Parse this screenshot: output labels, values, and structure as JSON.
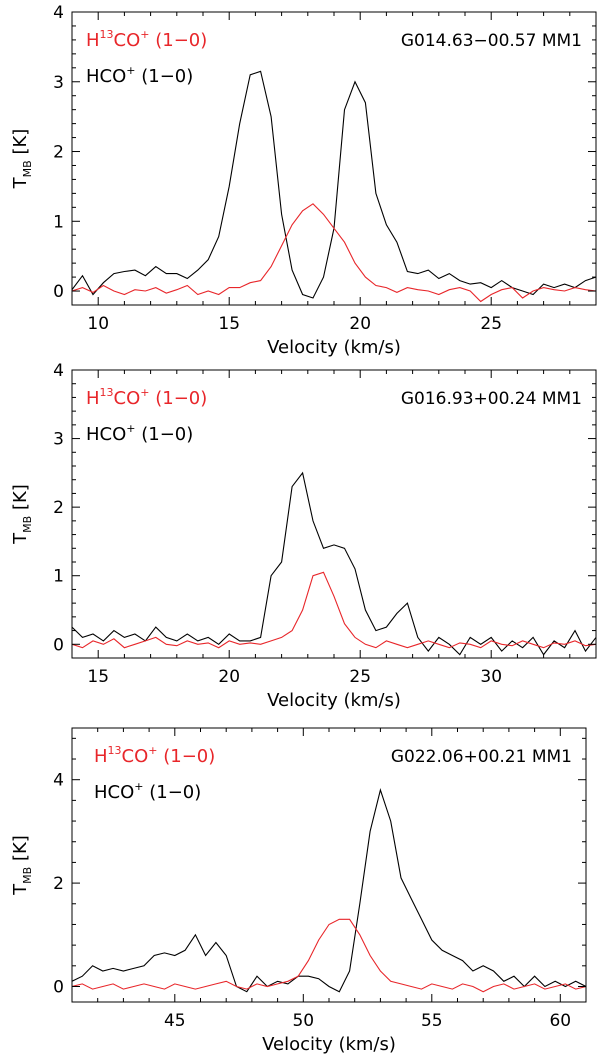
{
  "colors": {
    "hco": "#000000",
    "h13co": "#e8262a"
  },
  "chart_data": [
    {
      "type": "line",
      "source": "G014.63−00.57 MM1",
      "xlabel": "Velocity (km/s)",
      "ylabel_main": "T",
      "ylabel_sub": "MB",
      "ylabel_unit": "[K]",
      "xlim": [
        9,
        29
      ],
      "ylim": [
        -0.2,
        4
      ],
      "xticks": [
        10,
        15,
        20,
        25
      ],
      "yticks": [
        0,
        1,
        2,
        3,
        4
      ],
      "legend": [
        {
          "prefix": "H",
          "sup1": "13",
          "mid": "CO",
          "sup2": "+",
          "suffix": " (1−0)",
          "color": "#e8262a"
        },
        {
          "prefix": "",
          "sup1": "",
          "mid": "HCO",
          "sup2": "+",
          "suffix": " (1−0)",
          "color": "#000000"
        }
      ],
      "series": [
        {
          "name": "HCO+ (1-0)",
          "color": "#000000",
          "x": [
            9.0,
            9.4,
            9.8,
            10.2,
            10.6,
            11.0,
            11.4,
            11.8,
            12.2,
            12.6,
            13.0,
            13.4,
            13.8,
            14.2,
            14.6,
            15.0,
            15.4,
            15.8,
            16.2,
            16.6,
            17.0,
            17.4,
            17.8,
            18.2,
            18.6,
            19.0,
            19.4,
            19.8,
            20.2,
            20.6,
            21.0,
            21.4,
            21.8,
            22.2,
            22.6,
            23.0,
            23.4,
            23.8,
            24.2,
            24.6,
            25.0,
            25.4,
            25.8,
            26.2,
            26.6,
            27.0,
            27.4,
            27.8,
            28.2,
            28.6,
            29.0
          ],
          "y": [
            0.02,
            0.22,
            -0.05,
            0.12,
            0.25,
            0.28,
            0.3,
            0.22,
            0.35,
            0.25,
            0.25,
            0.18,
            0.3,
            0.45,
            0.78,
            1.5,
            2.4,
            3.1,
            3.15,
            2.5,
            1.1,
            0.3,
            -0.05,
            -0.1,
            0.2,
            0.9,
            2.6,
            3.0,
            2.7,
            1.4,
            0.95,
            0.7,
            0.28,
            0.25,
            0.3,
            0.18,
            0.25,
            0.15,
            0.1,
            0.12,
            0.05,
            0.15,
            0.05,
            0.0,
            -0.05,
            0.1,
            0.05,
            0.1,
            0.05,
            0.15,
            0.2
          ]
        },
        {
          "name": "H13CO+ (1-0)",
          "color": "#e8262a",
          "x": [
            9.0,
            9.4,
            9.8,
            10.2,
            10.6,
            11.0,
            11.4,
            11.8,
            12.2,
            12.6,
            13.0,
            13.4,
            13.8,
            14.2,
            14.6,
            15.0,
            15.4,
            15.8,
            16.2,
            16.6,
            17.0,
            17.4,
            17.8,
            18.2,
            18.6,
            19.0,
            19.4,
            19.8,
            20.2,
            20.6,
            21.0,
            21.4,
            21.8,
            22.2,
            22.6,
            23.0,
            23.4,
            23.8,
            24.2,
            24.6,
            25.0,
            25.4,
            25.8,
            26.2,
            26.6,
            27.0,
            27.4,
            27.8,
            28.2,
            28.6,
            29.0
          ],
          "y": [
            0.0,
            0.05,
            -0.02,
            0.08,
            0.0,
            -0.05,
            0.02,
            0.0,
            0.05,
            -0.03,
            0.02,
            0.08,
            -0.05,
            0.0,
            -0.05,
            0.05,
            0.05,
            0.12,
            0.15,
            0.35,
            0.65,
            0.95,
            1.15,
            1.25,
            1.1,
            0.9,
            0.7,
            0.4,
            0.2,
            0.08,
            0.05,
            -0.02,
            0.05,
            0.02,
            0.0,
            -0.05,
            0.02,
            0.05,
            0.0,
            -0.15,
            -0.05,
            0.02,
            0.05,
            -0.1,
            0.0,
            0.05,
            0.02,
            0.0,
            0.05,
            0.02,
            0.0
          ]
        }
      ]
    },
    {
      "type": "line",
      "source": "G016.93+00.24 MM1",
      "xlabel": "Velocity (km/s)",
      "ylabel_main": "T",
      "ylabel_sub": "MB",
      "ylabel_unit": "[K]",
      "xlim": [
        14,
        34
      ],
      "ylim": [
        -0.2,
        4
      ],
      "xticks": [
        15,
        20,
        25,
        30
      ],
      "yticks": [
        0,
        1,
        2,
        3,
        4
      ],
      "legend": [
        {
          "prefix": "H",
          "sup1": "13",
          "mid": "CO",
          "sup2": "+",
          "suffix": " (1−0)",
          "color": "#e8262a"
        },
        {
          "prefix": "",
          "sup1": "",
          "mid": "HCO",
          "sup2": "+",
          "suffix": " (1−0)",
          "color": "#000000"
        }
      ],
      "series": [
        {
          "name": "HCO+ (1-0)",
          "color": "#000000",
          "x": [
            14.0,
            14.4,
            14.8,
            15.2,
            15.6,
            16.0,
            16.4,
            16.8,
            17.2,
            17.6,
            18.0,
            18.4,
            18.8,
            19.2,
            19.6,
            20.0,
            20.4,
            20.8,
            21.2,
            21.6,
            22.0,
            22.4,
            22.8,
            23.2,
            23.6,
            24.0,
            24.4,
            24.8,
            25.2,
            25.6,
            26.0,
            26.4,
            26.8,
            27.2,
            27.6,
            28.0,
            28.4,
            28.8,
            29.2,
            29.6,
            30.0,
            30.4,
            30.8,
            31.2,
            31.6,
            32.0,
            32.4,
            32.8,
            33.2,
            33.6,
            34.0
          ],
          "y": [
            0.25,
            0.1,
            0.15,
            0.05,
            0.2,
            0.1,
            0.15,
            0.05,
            0.25,
            0.1,
            0.05,
            0.15,
            0.05,
            0.1,
            0.0,
            0.15,
            0.05,
            0.05,
            0.1,
            1.0,
            1.2,
            2.3,
            2.5,
            1.8,
            1.4,
            1.45,
            1.4,
            1.1,
            0.5,
            0.2,
            0.25,
            0.45,
            0.6,
            0.1,
            -0.1,
            0.1,
            0.0,
            -0.15,
            0.1,
            0.0,
            0.1,
            -0.1,
            0.05,
            -0.05,
            0.1,
            -0.15,
            0.05,
            -0.05,
            0.2,
            -0.1,
            0.1
          ]
        },
        {
          "name": "H13CO+ (1-0)",
          "color": "#e8262a",
          "x": [
            14.0,
            14.4,
            14.8,
            15.2,
            15.6,
            16.0,
            16.4,
            16.8,
            17.2,
            17.6,
            18.0,
            18.4,
            18.8,
            19.2,
            19.6,
            20.0,
            20.4,
            20.8,
            21.2,
            21.6,
            22.0,
            22.4,
            22.8,
            23.2,
            23.6,
            24.0,
            24.4,
            24.8,
            25.2,
            25.6,
            26.0,
            26.4,
            26.8,
            27.2,
            27.6,
            28.0,
            28.4,
            28.8,
            29.2,
            29.6,
            30.0,
            30.4,
            30.8,
            31.2,
            31.6,
            32.0,
            32.4,
            32.8,
            33.2,
            33.6,
            34.0
          ],
          "y": [
            0.0,
            -0.05,
            0.05,
            0.0,
            0.08,
            -0.05,
            0.0,
            0.05,
            0.1,
            0.0,
            -0.02,
            0.05,
            0.0,
            0.02,
            -0.05,
            0.05,
            0.0,
            0.02,
            0.0,
            0.05,
            0.1,
            0.2,
            0.5,
            1.0,
            1.05,
            0.7,
            0.3,
            0.1,
            0.0,
            -0.05,
            0.05,
            0.0,
            -0.05,
            0.0,
            0.05,
            0.0,
            -0.05,
            0.02,
            0.0,
            -0.05,
            0.05,
            0.0,
            -0.02,
            0.05,
            0.0,
            -0.05,
            0.02,
            0.0,
            0.05,
            -0.02,
            0.0
          ]
        }
      ]
    },
    {
      "type": "line",
      "source": "G022.06+00.21 MM1",
      "xlabel": "Velocity (km/s)",
      "ylabel_main": "T",
      "ylabel_sub": "MB",
      "ylabel_unit": "[K]",
      "xlim": [
        41,
        61
      ],
      "ylim": [
        -0.3,
        5
      ],
      "xticks": [
        45,
        50,
        55,
        60
      ],
      "yticks": [
        0,
        2,
        4
      ],
      "legend": [
        {
          "prefix": "H",
          "sup1": "13",
          "mid": "CO",
          "sup2": "+",
          "suffix": " (1−0)",
          "color": "#e8262a"
        },
        {
          "prefix": "",
          "sup1": "",
          "mid": "HCO",
          "sup2": "+",
          "suffix": " (1−0)",
          "color": "#000000"
        }
      ],
      "series": [
        {
          "name": "HCO+ (1-0)",
          "color": "#000000",
          "x": [
            41.0,
            41.4,
            41.8,
            42.2,
            42.6,
            43.0,
            43.4,
            43.8,
            44.2,
            44.6,
            45.0,
            45.4,
            45.8,
            46.2,
            46.6,
            47.0,
            47.4,
            47.8,
            48.2,
            48.6,
            49.0,
            49.4,
            49.8,
            50.2,
            50.6,
            51.0,
            51.4,
            51.8,
            52.2,
            52.6,
            53.0,
            53.4,
            53.8,
            54.2,
            54.6,
            55.0,
            55.4,
            55.8,
            56.2,
            56.6,
            57.0,
            57.4,
            57.8,
            58.2,
            58.6,
            59.0,
            59.4,
            59.8,
            60.2,
            60.6,
            61.0
          ],
          "y": [
            0.1,
            0.2,
            0.4,
            0.3,
            0.35,
            0.3,
            0.35,
            0.4,
            0.6,
            0.65,
            0.6,
            0.7,
            1.0,
            0.6,
            0.85,
            0.6,
            0.0,
            -0.1,
            0.2,
            0.0,
            0.1,
            0.05,
            0.2,
            0.2,
            0.15,
            0.0,
            -0.1,
            0.3,
            1.6,
            3.0,
            3.8,
            3.2,
            2.1,
            1.7,
            1.3,
            0.9,
            0.7,
            0.6,
            0.5,
            0.3,
            0.4,
            0.3,
            0.1,
            0.2,
            0.0,
            0.2,
            0.0,
            0.1,
            0.0,
            0.1,
            0.0
          ]
        },
        {
          "name": "H13CO+ (1-0)",
          "color": "#e8262a",
          "x": [
            41.0,
            41.4,
            41.8,
            42.2,
            42.6,
            43.0,
            43.4,
            43.8,
            44.2,
            44.6,
            45.0,
            45.4,
            45.8,
            46.2,
            46.6,
            47.0,
            47.4,
            47.8,
            48.2,
            48.6,
            49.0,
            49.4,
            49.8,
            50.2,
            50.6,
            51.0,
            51.4,
            51.8,
            52.2,
            52.6,
            53.0,
            53.4,
            53.8,
            54.2,
            54.6,
            55.0,
            55.4,
            55.8,
            56.2,
            56.6,
            57.0,
            57.4,
            57.8,
            58.2,
            58.6,
            59.0,
            59.4,
            59.8,
            60.2,
            60.6,
            61.0
          ],
          "y": [
            0.0,
            0.05,
            -0.05,
            0.0,
            0.05,
            -0.05,
            0.0,
            0.05,
            0.0,
            -0.05,
            0.05,
            0.0,
            -0.05,
            0.0,
            0.05,
            0.1,
            0.0,
            -0.05,
            0.05,
            0.0,
            0.05,
            0.1,
            0.2,
            0.5,
            0.9,
            1.2,
            1.3,
            1.3,
            1.0,
            0.6,
            0.3,
            0.1,
            0.05,
            0.0,
            -0.05,
            0.05,
            0.0,
            -0.05,
            0.05,
            0.0,
            -0.1,
            0.0,
            0.05,
            -0.05,
            0.0,
            0.05,
            -0.05,
            0.0,
            0.05,
            -0.05,
            0.0
          ]
        }
      ]
    }
  ]
}
